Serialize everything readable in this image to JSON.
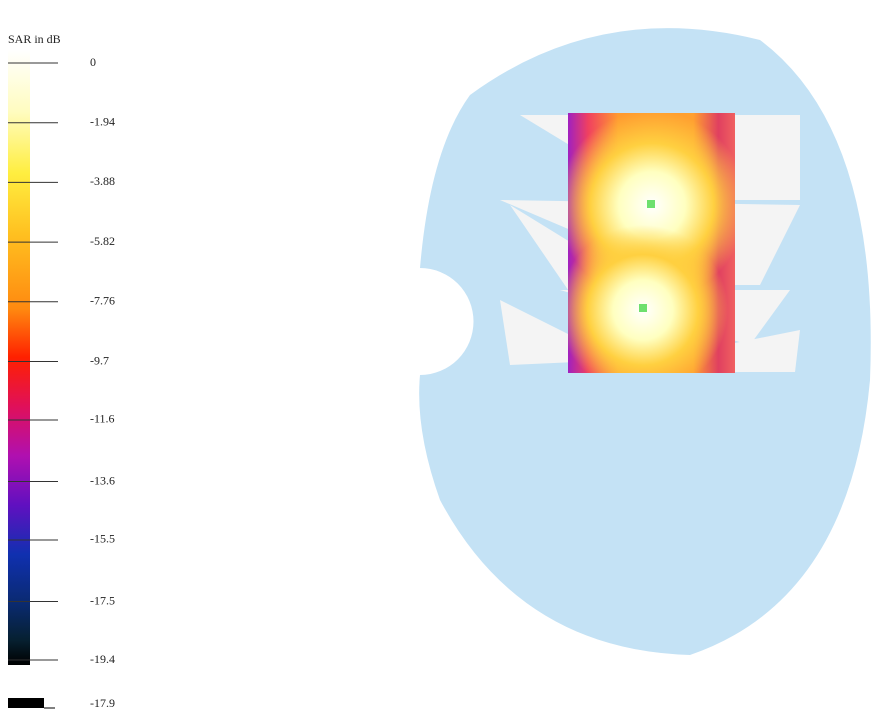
{
  "colorbar": {
    "title": "SAR in dB",
    "ticks": [
      0,
      -1.94,
      -3.88,
      -5.82,
      -7.76,
      -9.7,
      -11.6,
      -13.6,
      -15.5,
      -17.5,
      -19.4
    ],
    "extra_label": "-17.9"
  }
}
